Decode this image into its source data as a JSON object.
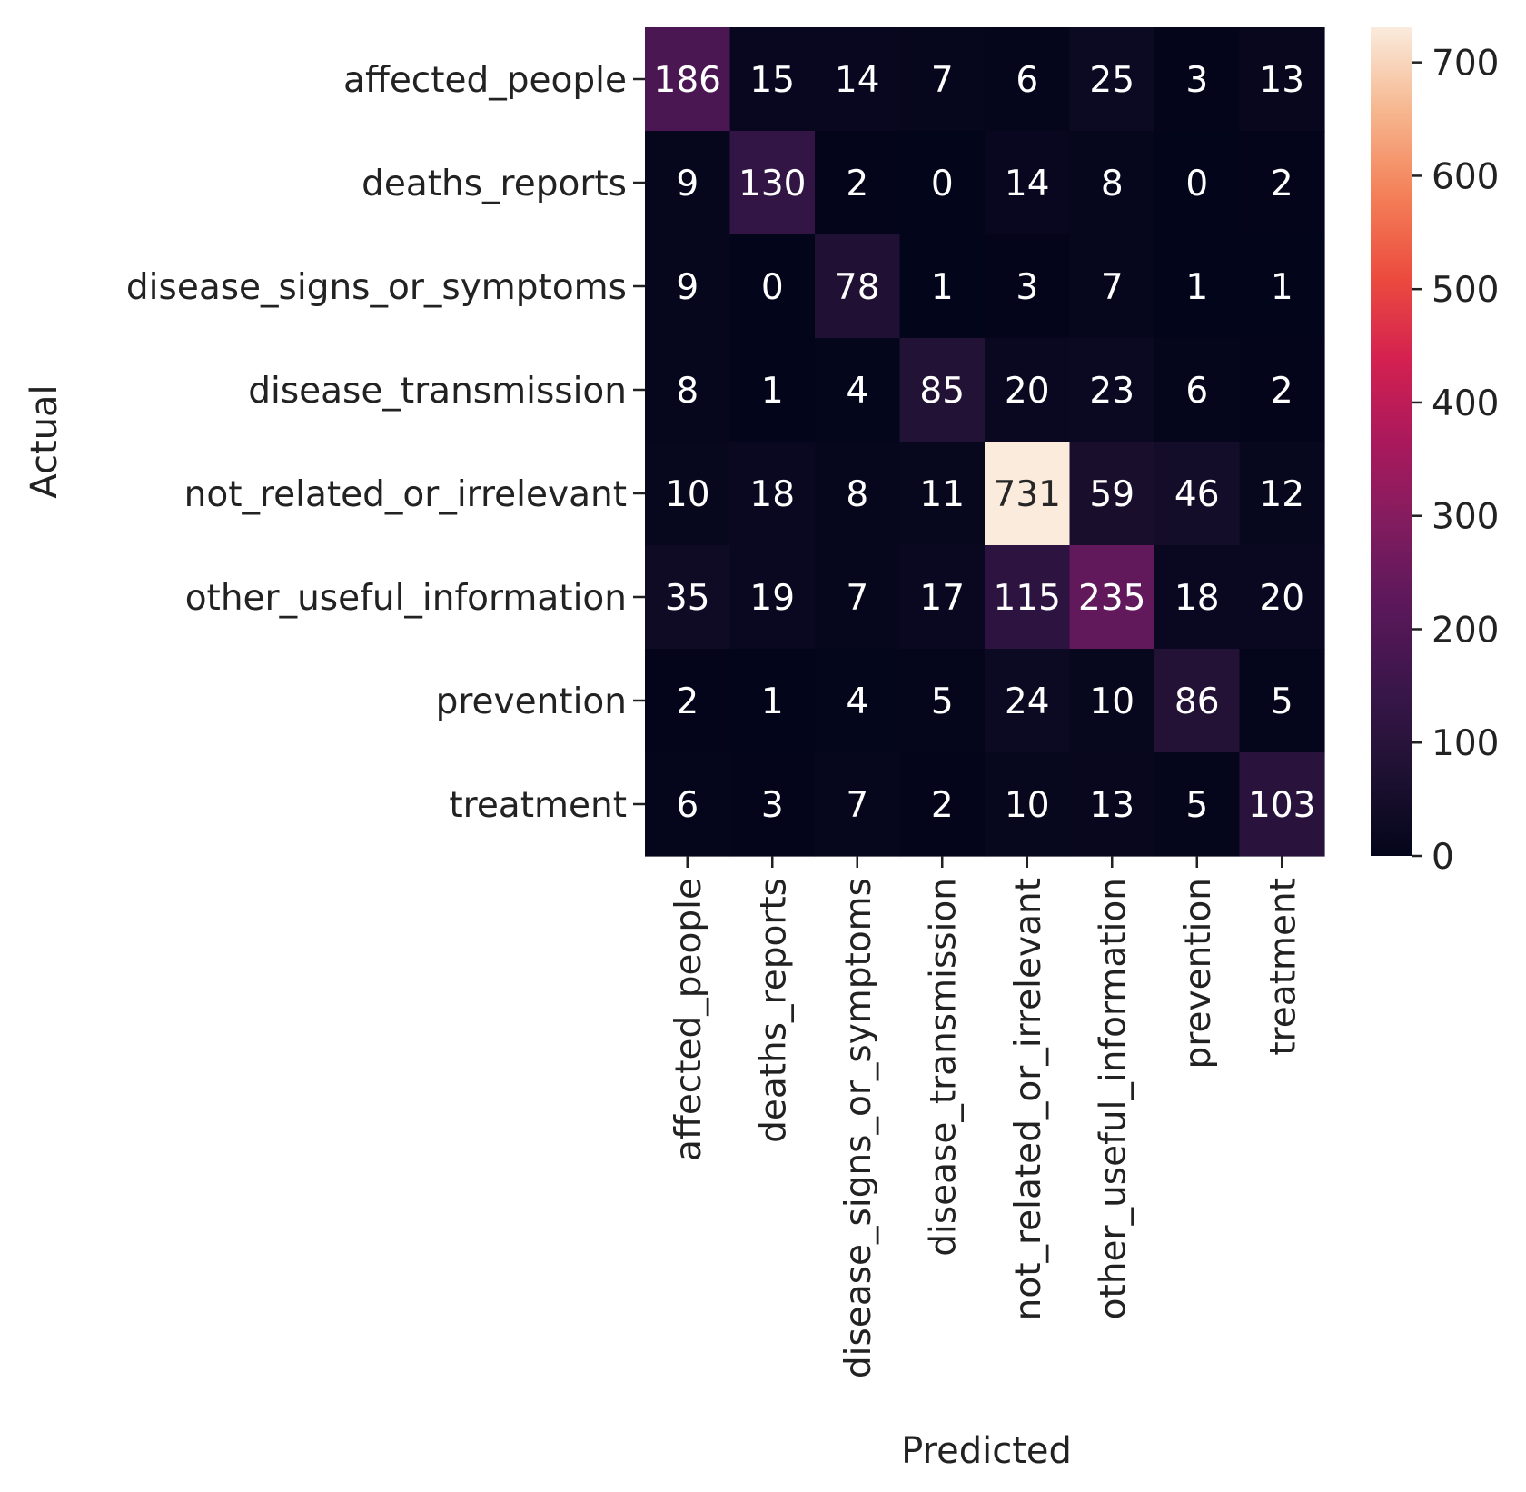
{
  "chart_data": {
    "type": "heatmap",
    "xlabel": "Predicted",
    "ylabel": "Actual",
    "x_categories": [
      "affected_people",
      "deaths_reports",
      "disease_signs_or_symptoms",
      "disease_transmission",
      "not_related_or_irrelevant",
      "other_useful_information",
      "prevention",
      "treatment"
    ],
    "y_categories": [
      "affected_people",
      "deaths_reports",
      "disease_signs_or_symptoms",
      "disease_transmission",
      "not_related_or_irrelevant",
      "other_useful_information",
      "prevention",
      "treatment"
    ],
    "values": [
      [
        186,
        15,
        14,
        7,
        6,
        25,
        3,
        13
      ],
      [
        9,
        130,
        2,
        0,
        14,
        8,
        0,
        2
      ],
      [
        9,
        0,
        78,
        1,
        3,
        7,
        1,
        1
      ],
      [
        8,
        1,
        4,
        85,
        20,
        23,
        6,
        2
      ],
      [
        10,
        18,
        8,
        11,
        731,
        59,
        46,
        12
      ],
      [
        35,
        19,
        7,
        17,
        115,
        235,
        18,
        20
      ],
      [
        2,
        1,
        4,
        5,
        24,
        10,
        86,
        5
      ],
      [
        6,
        3,
        7,
        2,
        10,
        13,
        5,
        103
      ]
    ],
    "colorbar": {
      "colormap": "rocket",
      "vmin": 0,
      "vmax": 731,
      "ticks": [
        "0",
        "100",
        "200",
        "300",
        "400",
        "500",
        "600",
        "700"
      ]
    }
  }
}
